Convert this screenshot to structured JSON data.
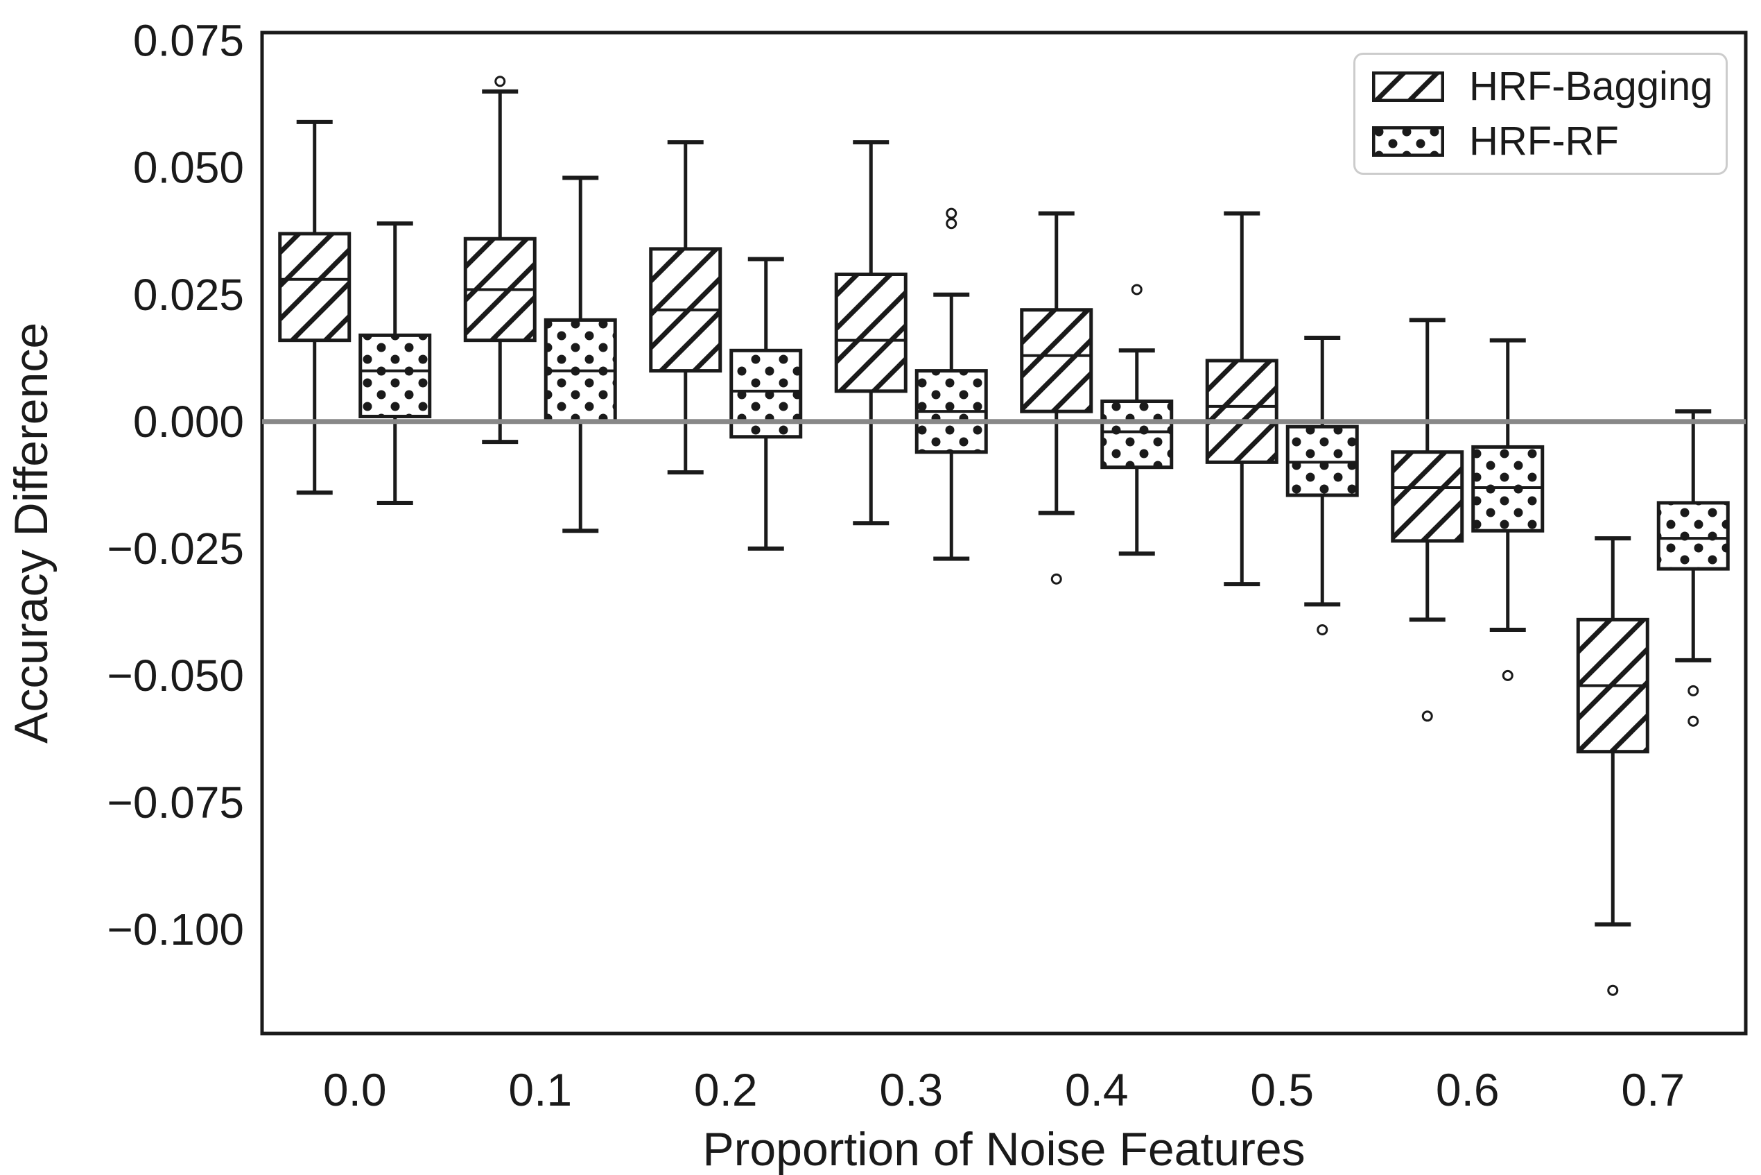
{
  "chart_data": {
    "type": "bar",
    "plot_kind": "grouped-boxplot",
    "title": "",
    "xlabel": "Proportion of Noise Features",
    "ylabel": "Accuracy Difference",
    "categories": [
      "0.0",
      "0.1",
      "0.2",
      "0.3",
      "0.4",
      "0.5",
      "0.6",
      "0.7"
    ],
    "y_ticks": [
      {
        "label": "0.075",
        "value": 0.075
      },
      {
        "label": "0.050",
        "value": 0.05
      },
      {
        "label": "0.025",
        "value": 0.025
      },
      {
        "label": "0.000",
        "value": 0.0
      },
      {
        "label": "−0.025",
        "value": -0.025
      },
      {
        "label": "−0.050",
        "value": -0.05
      },
      {
        "label": "−0.075",
        "value": -0.075
      },
      {
        "label": "−0.100",
        "value": -0.1
      }
    ],
    "ylim": [
      -0.1205,
      0.0766
    ],
    "grid": false,
    "zero_line": {
      "value": 0
    },
    "legend": {
      "position": "upper-right",
      "items": [
        {
          "label": "HRF-Bagging",
          "pattern": "diagonal-hatch"
        },
        {
          "label": "HRF-RF",
          "pattern": "dots"
        }
      ]
    },
    "series": [
      {
        "name": "HRF-Bagging",
        "pattern": "diagonal-hatch",
        "boxes": [
          {
            "category": "0.0",
            "whislo": -0.014,
            "q1": 0.016,
            "med": 0.028,
            "q3": 0.037,
            "whishi": 0.059,
            "fliers": []
          },
          {
            "category": "0.1",
            "whislo": -0.004,
            "q1": 0.016,
            "med": 0.026,
            "q3": 0.036,
            "whishi": 0.065,
            "fliers": [
              0.067
            ]
          },
          {
            "category": "0.2",
            "whislo": -0.01,
            "q1": 0.01,
            "med": 0.022,
            "q3": 0.034,
            "whishi": 0.055,
            "fliers": []
          },
          {
            "category": "0.3",
            "whislo": -0.02,
            "q1": 0.006,
            "med": 0.016,
            "q3": 0.029,
            "whishi": 0.055,
            "fliers": []
          },
          {
            "category": "0.4",
            "whislo": -0.018,
            "q1": 0.002,
            "med": 0.013,
            "q3": 0.022,
            "whishi": 0.041,
            "fliers": [
              -0.031
            ]
          },
          {
            "category": "0.5",
            "whislo": -0.032,
            "q1": -0.008,
            "med": 0.003,
            "q3": 0.012,
            "whishi": 0.041,
            "fliers": []
          },
          {
            "category": "0.6",
            "whislo": -0.039,
            "q1": -0.0235,
            "med": -0.013,
            "q3": -0.006,
            "whishi": 0.02,
            "fliers": [
              -0.058
            ]
          },
          {
            "category": "0.7",
            "whislo": -0.099,
            "q1": -0.065,
            "med": -0.052,
            "q3": -0.039,
            "whishi": -0.023,
            "fliers": [
              -0.112
            ]
          }
        ]
      },
      {
        "name": "HRF-RF",
        "pattern": "dots",
        "boxes": [
          {
            "category": "0.0",
            "whislo": -0.016,
            "q1": 0.001,
            "med": 0.01,
            "q3": 0.017,
            "whishi": 0.039,
            "fliers": []
          },
          {
            "category": "0.1",
            "whislo": -0.0215,
            "q1": 0.0,
            "med": 0.01,
            "q3": 0.02,
            "whishi": 0.048,
            "fliers": []
          },
          {
            "category": "0.2",
            "whislo": -0.025,
            "q1": -0.003,
            "med": 0.006,
            "q3": 0.014,
            "whishi": 0.032,
            "fliers": []
          },
          {
            "category": "0.3",
            "whislo": -0.027,
            "q1": -0.006,
            "med": 0.002,
            "q3": 0.01,
            "whishi": 0.025,
            "fliers": [
              0.041,
              0.039
            ]
          },
          {
            "category": "0.4",
            "whislo": -0.026,
            "q1": -0.009,
            "med": -0.002,
            "q3": 0.004,
            "whishi": 0.014,
            "fliers": [
              0.026
            ]
          },
          {
            "category": "0.5",
            "whislo": -0.036,
            "q1": -0.0145,
            "med": -0.008,
            "q3": -0.001,
            "whishi": 0.0165,
            "fliers": [
              -0.041
            ]
          },
          {
            "category": "0.6",
            "whislo": -0.041,
            "q1": -0.0215,
            "med": -0.013,
            "q3": -0.005,
            "whishi": 0.016,
            "fliers": [
              -0.05
            ]
          },
          {
            "category": "0.7",
            "whislo": -0.047,
            "q1": -0.029,
            "med": -0.023,
            "q3": -0.016,
            "whishi": 0.002,
            "fliers": [
              -0.053,
              -0.059
            ]
          }
        ]
      }
    ],
    "colors": {
      "ink": "#1a1a1a",
      "zero_line": "#888888",
      "legend_border": "#cccccc",
      "background": "#ffffff"
    }
  }
}
